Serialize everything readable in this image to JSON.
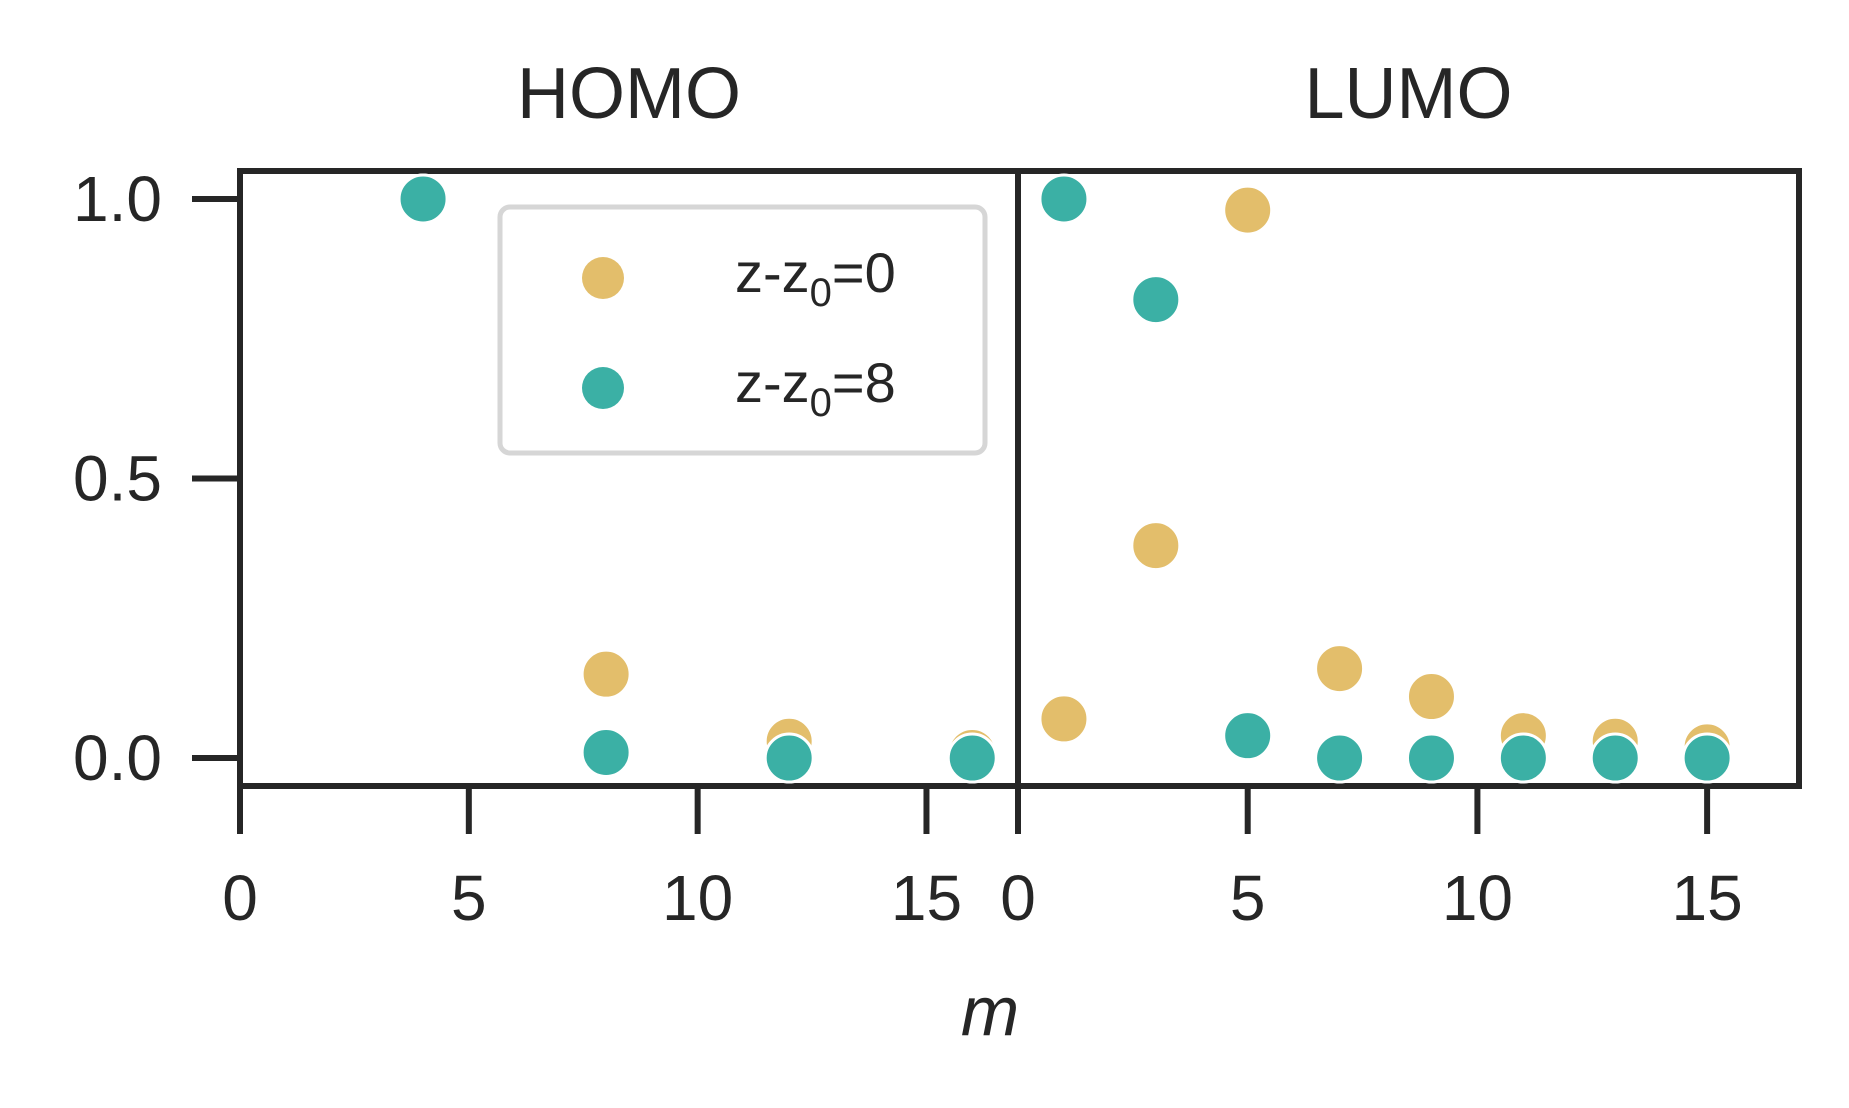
{
  "chart_data": [
    {
      "type": "scatter",
      "title": "HOMO",
      "xlabel": "",
      "ylabel": "",
      "xlim": [
        0,
        17
      ],
      "ylim": [
        -0.05,
        1.05
      ],
      "xticks": [
        "0",
        "5",
        "10",
        "15"
      ],
      "yticks": [
        "0.0",
        "0.5",
        "1.0"
      ],
      "grid": false,
      "series": [
        {
          "name": "z-z0=0",
          "color": "#E3BE6B",
          "x": [
            4,
            8,
            12,
            16
          ],
          "y": [
            1.0,
            0.15,
            0.03,
            0.01
          ]
        },
        {
          "name": "z-z0=8",
          "color": "#3BB0A5",
          "x": [
            4,
            8,
            12,
            16
          ],
          "y": [
            1.0,
            0.01,
            0.0,
            0.0
          ]
        }
      ]
    },
    {
      "type": "scatter",
      "title": "LUMO",
      "xlabel": "",
      "ylabel": "",
      "xlim": [
        0,
        17
      ],
      "ylim": [
        -0.05,
        1.05
      ],
      "xticks": [
        "0",
        "5",
        "10",
        "15"
      ],
      "grid": false,
      "series": [
        {
          "name": "z-z0=0",
          "color": "#E3BE6B",
          "x": [
            1,
            3,
            5,
            7,
            9,
            11,
            13,
            15
          ],
          "y": [
            0.07,
            0.38,
            0.98,
            0.16,
            0.11,
            0.04,
            0.03,
            0.02
          ]
        },
        {
          "name": "z-z0=8",
          "color": "#3BB0A5",
          "x": [
            1,
            3,
            5,
            7,
            9,
            11,
            13,
            15
          ],
          "y": [
            1.0,
            0.82,
            0.04,
            0.0,
            0.0,
            0.0,
            0.0,
            0.0
          ]
        }
      ]
    }
  ],
  "shared_xlabel": "m",
  "legend": {
    "placement": "upper-left panel, top-right",
    "entries": [
      {
        "prefix": "z-z",
        "sub": "0",
        "suffix": "=0",
        "color": "#E3BE6B"
      },
      {
        "prefix": "z-z",
        "sub": "0",
        "suffix": "=8",
        "color": "#3BB0A5"
      }
    ]
  }
}
